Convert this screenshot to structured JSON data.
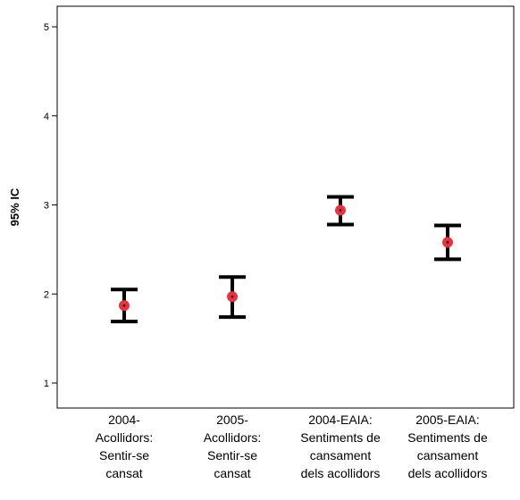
{
  "chart_data": {
    "type": "errorbar",
    "title": "",
    "xlabel": "",
    "ylabel": "95% IC",
    "ylim": [
      0.7,
      5.2
    ],
    "yticks": [
      1,
      2,
      3,
      4,
      5
    ],
    "grid": false,
    "legend": "none",
    "categories": [
      [
        "2004-",
        "Acollidors:",
        "Sentir-se",
        "cansat"
      ],
      [
        "2005-",
        "Acollidors:",
        "Sentir-se",
        "cansat"
      ],
      [
        "2004-EAIA:",
        "Sentiments de",
        "cansament",
        "dels acollidors"
      ],
      [
        "2005-EAIA:",
        "Sentiments de",
        "cansament",
        "dels acollidors"
      ]
    ],
    "series": [
      {
        "mean": [
          1.87,
          1.97,
          2.94,
          2.58
        ],
        "lower": [
          1.69,
          1.74,
          2.78,
          2.39
        ],
        "upper": [
          2.05,
          2.19,
          3.09,
          2.77
        ]
      }
    ],
    "colors": {
      "marker": "#e8323c",
      "bar": "#000000",
      "axis": "#000000"
    }
  }
}
